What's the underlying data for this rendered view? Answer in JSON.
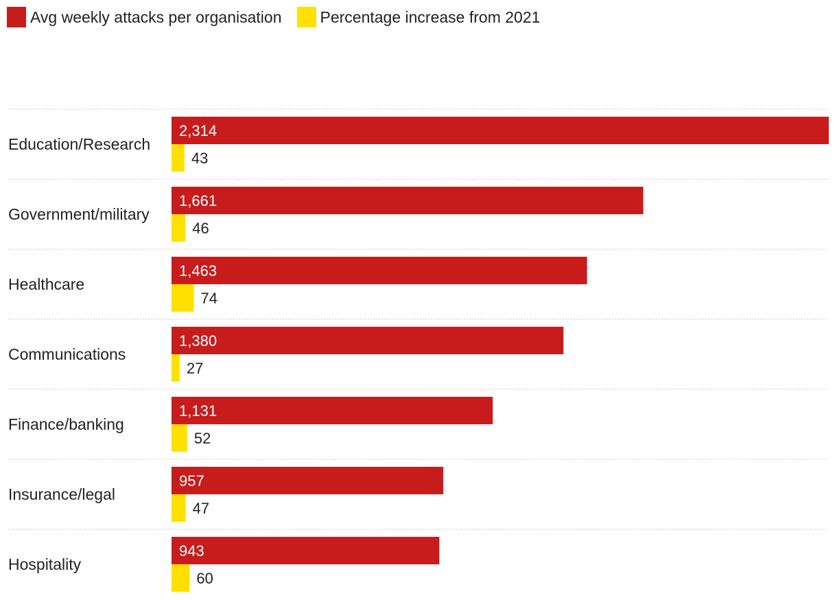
{
  "chart_data": {
    "type": "bar",
    "orientation": "horizontal",
    "categories": [
      "Education/Research",
      "Government/military",
      "Healthcare",
      "Communications",
      "Finance/banking",
      "Insurance/legal",
      "Hospitality"
    ],
    "series": [
      {
        "name": "Avg weekly attacks per organisation",
        "color": "#c81c1c",
        "values": [
          2314,
          1661,
          1463,
          1380,
          1131,
          957,
          943
        ],
        "labels": [
          "2,314",
          "1,661",
          "1,463",
          "1,380",
          "1,131",
          "957",
          "943"
        ]
      },
      {
        "name": "Percentage increase from 2021",
        "color": "#ffe000",
        "values": [
          43,
          46,
          74,
          27,
          52,
          47,
          60
        ],
        "labels": [
          "43",
          "46",
          "74",
          "27",
          "52",
          "47",
          "60"
        ]
      }
    ],
    "legend_position": "top-left",
    "grid": false
  }
}
